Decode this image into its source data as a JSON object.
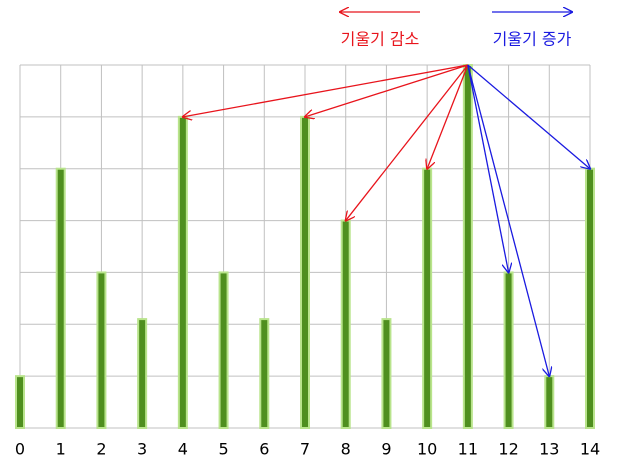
{
  "chart_data": {
    "type": "bar",
    "categories": [
      "0",
      "1",
      "2",
      "3",
      "4",
      "5",
      "6",
      "7",
      "8",
      "9",
      "10",
      "11",
      "12",
      "13",
      "14"
    ],
    "values": [
      1,
      5,
      3,
      2.1,
      6,
      3,
      2.1,
      6,
      4,
      2.1,
      5,
      7,
      3,
      1,
      5
    ],
    "color": "#4f8f1f",
    "ylim": [
      0,
      7
    ],
    "yticks": [
      0,
      1,
      2,
      3,
      4,
      5,
      6,
      7
    ],
    "grid": true,
    "arrows": [
      {
        "name": "기울기 감소",
        "color": "#e8141c",
        "from": "11",
        "to": [
          "4",
          "7",
          "8",
          "10"
        ]
      },
      {
        "name": "기울기 증가",
        "color": "#1a1ae0",
        "from": "11",
        "to": [
          "12",
          "13",
          "14"
        ]
      }
    ]
  }
}
